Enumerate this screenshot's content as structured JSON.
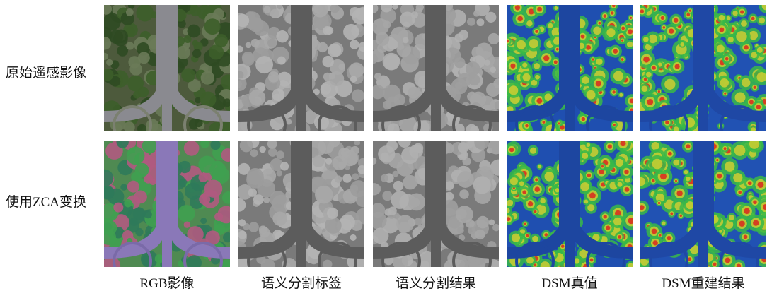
{
  "row_labels": [
    "原始遥感影像",
    "使用ZCA变换"
  ],
  "column_labels": [
    "RGB影像",
    "语义分割标签",
    "语义分割结果",
    "DSM真值",
    "DSM重建结果"
  ]
}
